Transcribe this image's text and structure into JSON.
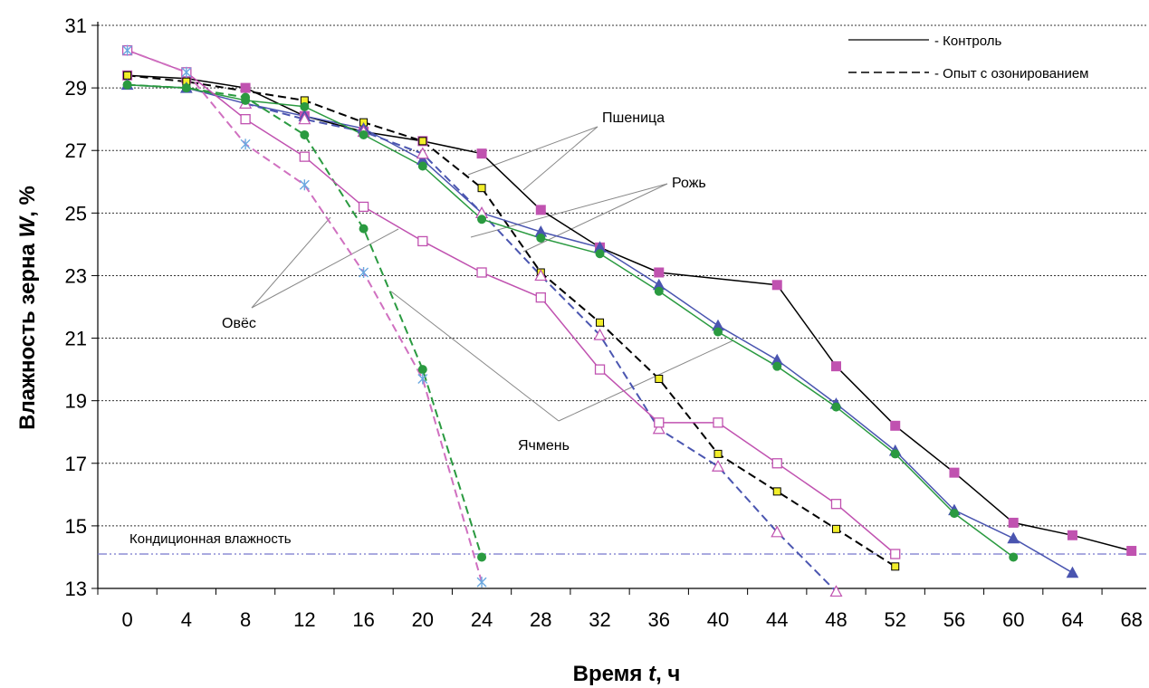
{
  "chart_data": {
    "type": "line",
    "xlabel_parts": [
      "Время ",
      "t",
      ", ч"
    ],
    "ylabel_parts": [
      "Влажность зерна ",
      "W",
      ", %"
    ],
    "x_ticks": [
      0,
      4,
      8,
      12,
      16,
      20,
      24,
      28,
      32,
      36,
      40,
      44,
      48,
      52,
      56,
      60,
      64,
      68
    ],
    "y_ticks": [
      13,
      15,
      17,
      19,
      21,
      23,
      25,
      27,
      29,
      31
    ],
    "xlim": [
      -2,
      69
    ],
    "ylim": [
      13,
      31
    ],
    "grid": "horizontal dotted",
    "legend": {
      "placement": "top-right",
      "entries": [
        {
          "label": "- Контроль",
          "style": "solid"
        },
        {
          "label": "- Опыт с озонированием",
          "style": "dashed"
        }
      ]
    },
    "threshold": {
      "y": 14.1,
      "label": "Кондиционная влажность",
      "color": "#7777cc"
    },
    "annotations": [
      {
        "text": "Пшеница",
        "target": "wheat"
      },
      {
        "text": "Рожь",
        "target": "rye"
      },
      {
        "text": "Овёс",
        "target": "oats"
      },
      {
        "text": "Ячмень",
        "target": "barley"
      }
    ],
    "series": [
      {
        "crop": "wheat",
        "style": "solid",
        "color": "#000000",
        "marker": "square-filled",
        "markerColor": "#c052b0",
        "x": [
          0,
          4,
          8,
          12,
          16,
          20,
          24,
          28,
          32,
          36,
          44,
          48,
          52,
          56,
          60,
          64,
          68
        ],
        "y": [
          29.4,
          29.3,
          29.0,
          28.1,
          27.6,
          27.3,
          26.9,
          25.1,
          23.9,
          23.1,
          22.7,
          20.1,
          18.2,
          16.7,
          15.1,
          14.7,
          14.2
        ]
      },
      {
        "crop": "wheat",
        "style": "dashed",
        "color": "#000000",
        "marker": "square-yellow",
        "markerColor": "#f2ee2a",
        "x": [
          0,
          4,
          12,
          16,
          20,
          24,
          28,
          32,
          36,
          40,
          44,
          48,
          52
        ],
        "y": [
          29.4,
          29.2,
          28.6,
          27.9,
          27.3,
          25.8,
          23.1,
          21.5,
          19.7,
          17.3,
          16.1,
          14.9,
          13.7
        ]
      },
      {
        "crop": "rye",
        "style": "solid",
        "color": "#4a55b0",
        "marker": "triangle",
        "markerColor": "#4a55b0",
        "x": [
          0,
          4,
          8,
          12,
          16,
          20,
          24,
          28,
          32,
          36,
          40,
          44,
          48,
          52,
          56,
          60,
          64
        ],
        "y": [
          29.1,
          29.0,
          28.5,
          28.1,
          27.7,
          26.7,
          25.0,
          24.4,
          23.9,
          22.7,
          21.4,
          20.3,
          18.9,
          17.4,
          15.5,
          14.6,
          13.5
        ]
      },
      {
        "crop": "rye",
        "style": "dashed",
        "color": "#4a55b0",
        "marker": "triangle-open",
        "markerColor": "#c052b0",
        "x": [
          8,
          12,
          16,
          20,
          24,
          28,
          32,
          36,
          40,
          44,
          48
        ],
        "y": [
          28.5,
          28.0,
          27.6,
          26.9,
          25.0,
          23.0,
          21.1,
          18.1,
          16.9,
          14.8,
          12.9
        ]
      },
      {
        "crop": "barley",
        "style": "solid",
        "color": "#2a9a40",
        "marker": "circle",
        "markerColor": "#2a9a40",
        "x": [
          0,
          4,
          8,
          12,
          16,
          20,
          24,
          28,
          32,
          36,
          40,
          44,
          48,
          52,
          56,
          60
        ],
        "y": [
          29.1,
          29.0,
          28.6,
          28.4,
          27.5,
          26.5,
          24.8,
          24.2,
          23.7,
          22.5,
          21.2,
          20.1,
          18.8,
          17.3,
          15.4,
          14.0
        ]
      },
      {
        "crop": "barley",
        "style": "dashed",
        "color": "#2a9a40",
        "marker": "circle",
        "markerColor": "#2a9a40",
        "x": [
          0,
          4,
          8,
          12,
          16,
          20,
          24
        ],
        "y": [
          29.1,
          29.0,
          28.7,
          27.5,
          24.5,
          20.0,
          14.0
        ]
      },
      {
        "crop": "oats",
        "style": "solid",
        "color": "#c052b0",
        "marker": "square-open",
        "markerColor": "#c052b0",
        "x": [
          0,
          4,
          8,
          12,
          16,
          20,
          24,
          28,
          32,
          36,
          40,
          44,
          48,
          52
        ],
        "y": [
          30.2,
          29.5,
          28.0,
          26.8,
          25.2,
          24.1,
          23.1,
          22.3,
          20.0,
          18.3,
          18.3,
          17.0,
          15.7,
          14.1
        ]
      },
      {
        "crop": "oats",
        "style": "dashed",
        "color": "#d070c0",
        "marker": "asterisk",
        "markerColor": "#6aa8e0",
        "x": [
          0,
          4,
          8,
          12,
          16,
          20,
          24
        ],
        "y": [
          30.2,
          29.5,
          27.2,
          25.9,
          23.1,
          19.7,
          13.2
        ]
      }
    ]
  }
}
